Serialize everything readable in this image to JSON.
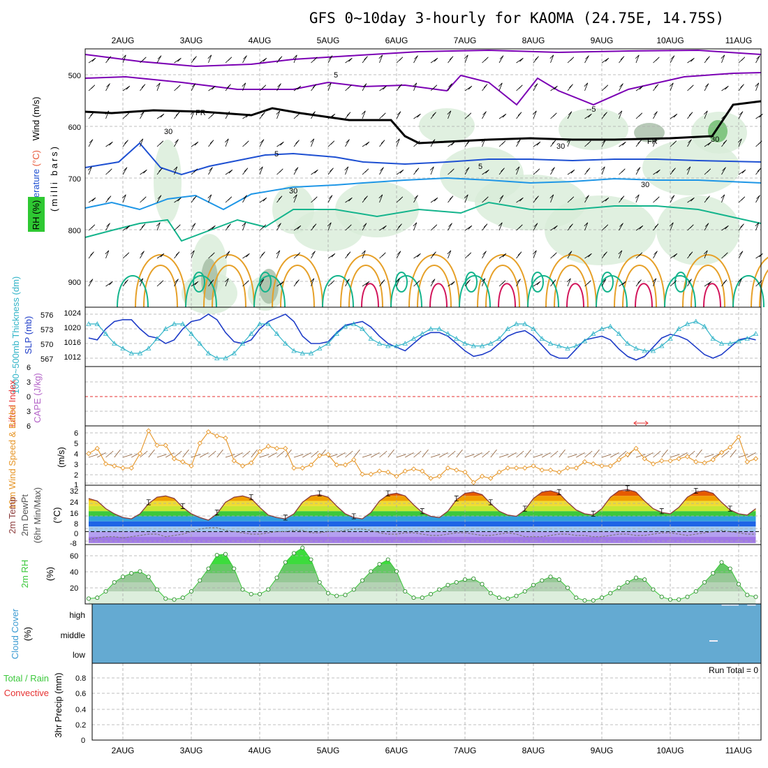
{
  "title": "GFS 0~10day 3-hourly for KAOMA (24.75E, 14.75S)",
  "dates": [
    "2AUG",
    "3AUG",
    "4AUG",
    "5AUG",
    "6AUG",
    "7AUG",
    "8AUG",
    "9AUG",
    "10AUG",
    "11AUG"
  ],
  "colors": {
    "wind500": "#7b00b4",
    "freezing": "#000000",
    "iso5": "#1e50d2",
    "iso10": "#1e96e6",
    "iso15": "#14b48c",
    "iso20": "#e6a028",
    "iso25": "#d2145a",
    "rh": "#b4dcb4",
    "slp": "#1e3cc8",
    "thickness": "#32b4c8",
    "li_zero": "#e63232",
    "wind10m": "#e69628",
    "barbs": "#8c5a32",
    "temp": "#8c3c3c",
    "dewpt": "#787878",
    "rh2m": "#3cc83c",
    "cloud_fill": "#64aad2",
    "cloud_clear": "#f4f0f8"
  },
  "panels": {
    "upper": {
      "labels": [
        "Wind (m/s)",
        "Temperature (°C)",
        "RH (%)"
      ],
      "axis_label": "(milli bars)",
      "yticks": [
        "500",
        "600",
        "700",
        "800",
        "900"
      ],
      "contour_labels": [
        "5",
        "-5",
        "FR",
        "5",
        "5",
        "FR",
        "30",
        "30",
        "30",
        "30",
        "30"
      ]
    },
    "pressure": {
      "label_left": "1000~500mb Thickness (dm)",
      "label_right": "SLP (mb)",
      "left_ticks": [
        "576",
        "573",
        "570",
        "567"
      ],
      "right_ticks": [
        "1024",
        "1020",
        "1016",
        "1012"
      ]
    },
    "stability": {
      "label_left": "Lifted Index",
      "label_right": "CAPE (J/kg)",
      "ticks": [
        "6",
        "3",
        "0",
        "3",
        "6"
      ]
    },
    "wind10": {
      "label": "10m Wind Speed & Barbs",
      "unit": "(m/s)",
      "ticks": [
        "6",
        "5",
        "4",
        "3",
        "2",
        "1"
      ]
    },
    "temp2m": {
      "label": "2m Temp 2m DewPt (6hr Min/Max)",
      "unit": "(°C)",
      "ticks": [
        "32",
        "24",
        "16",
        "8",
        "0",
        "-8"
      ]
    },
    "rh2m": {
      "label": "2m RH",
      "unit": "(%)",
      "ticks": [
        "60",
        "40",
        "20"
      ]
    },
    "cloud": {
      "label": "Cloud Cover",
      "unit": "(%)",
      "levels": [
        "high",
        "middle",
        "low"
      ]
    },
    "precip": {
      "label_total": "Total / Rain",
      "label_conv": "Convective",
      "label_axis": "3hr Precip (mm)",
      "ticks": [
        "0.8",
        "0.6",
        "0.4",
        "0.2",
        "0"
      ],
      "run_total": "Run Total = 0"
    }
  },
  "chart_data": [
    {
      "type": "line",
      "title": "1000~500mb Thickness (dm) / SLP (mb)",
      "x_start": "1AUG 12Z",
      "x_step_hours": 3,
      "ylim_left": [
        566,
        577
      ],
      "ylim_right": [
        1009,
        1025
      ],
      "series": [
        {
          "name": "SLP (mb)",
          "axis": "right",
          "values": [
            1017.5,
            1017,
            1020,
            1022,
            1022.5,
            1022.5,
            1020,
            1018,
            1017.5,
            1016,
            1017,
            1020,
            1022,
            1022.5,
            1024,
            1022.5,
            1019,
            1016.5,
            1016,
            1017,
            1020,
            1022,
            1023,
            1024,
            1022,
            1018,
            1016,
            1016,
            1016.5,
            1019,
            1021,
            1021.5,
            1022,
            1020.5,
            1018,
            1016,
            1015,
            1014,
            1016,
            1018,
            1019,
            1019,
            1018,
            1016,
            1014,
            1012.5,
            1013,
            1014,
            1016,
            1018,
            1019,
            1019.5,
            1018,
            1015.5,
            1013,
            1012,
            1012,
            1014.5,
            1017,
            1017.5,
            1018,
            1017,
            1014.5,
            1012.5,
            1011.5,
            1012.5,
            1015,
            1017.5,
            1018.5,
            1018,
            1017,
            1015,
            1013,
            1012,
            1013,
            1015,
            1017,
            1017.5,
            1017,
            1015.5,
            1014,
            1013,
            1013,
            1015,
            1016.5,
            1017,
            1016.5,
            1015.5,
            1013,
            1012,
            1012.5,
            1014.5,
            1016,
            1016.5,
            1016.5,
            1017,
            1017.5,
            1018,
            1018.5,
            1019
          ]
        },
        {
          "name": "1000~500mb Thickness (dm)",
          "axis": "left",
          "values": [
            574,
            574,
            572,
            570,
            569,
            568,
            568,
            569,
            571,
            573,
            574,
            574,
            572,
            570,
            568,
            567,
            567,
            568,
            570,
            572,
            574,
            574,
            572,
            570,
            568.5,
            568,
            568,
            569,
            570,
            572,
            573.5,
            574,
            573,
            571,
            570,
            569.5,
            569.5,
            570,
            571,
            572,
            573,
            573,
            572,
            571,
            570,
            569.5,
            569.5,
            570,
            571,
            573,
            574,
            574,
            573,
            571,
            570,
            569.5,
            569,
            569.5,
            570.5,
            572,
            573,
            573.5,
            572,
            570,
            569,
            568.5,
            568.5,
            569.5,
            571,
            573,
            574,
            574.5,
            573.5,
            571,
            570,
            570,
            570.5,
            571,
            572,
            573.5,
            574,
            574,
            572.5,
            570.5,
            569.5,
            569.5,
            570,
            571,
            572,
            573.5,
            574.5,
            575,
            574,
            572,
            571,
            571,
            571,
            572,
            573,
            573.5
          ]
        }
      ]
    },
    {
      "type": "line",
      "title": "10m Wind Speed & Barbs",
      "x_start": "1AUG 12Z",
      "x_step_hours": 3,
      "ylabel": "(m/s)",
      "ylim": [
        1,
        6.5
      ],
      "series": [
        {
          "name": "10m Wind Speed (m/s)",
          "values": [
            4,
            4.5,
            3,
            2.8,
            2.6,
            2.6,
            4,
            6.2,
            4.8,
            4.8,
            3.5,
            3.2,
            2.8,
            5,
            6.1,
            5.7,
            5.5,
            3.3,
            2.8,
            3.1,
            4.2,
            4.7,
            4.5,
            4.5,
            2.6,
            2.6,
            2.9,
            3.8,
            3.9,
            2.9,
            2.9,
            3.4,
            2,
            2,
            2.3,
            2.2,
            1.8,
            2.3,
            2.5,
            2.3,
            1.6,
            1.8,
            2.6,
            2.4,
            2.2,
            1.2,
            1.8,
            1.6,
            2.2,
            2.6,
            2.6,
            2.6,
            2.8,
            2.4,
            2.4,
            2.2,
            2.6,
            2.6,
            3.2,
            3,
            2.8,
            2.8,
            3.4,
            3.9,
            4.5,
            3.5,
            3,
            3.3,
            3.3,
            3.5,
            3.7,
            3.2,
            3.1,
            3.4,
            4.1,
            4.6,
            5.6,
            3.2,
            3.5,
            3.2,
            3.5,
            2.7,
            3.9,
            3.2,
            3.6,
            3,
            3.6,
            4,
            4.1,
            3.2,
            3.2,
            3.6,
            3,
            3.3,
            3.3,
            3.5,
            3.6,
            3.3,
            3.7,
            4
          ]
        }
      ]
    },
    {
      "type": "area",
      "title": "2m Temp / 2m DewPt",
      "x_start": "1AUG 12Z",
      "x_step_hours": 3,
      "ylabel": "(°C)",
      "ylim": [
        -9,
        33
      ],
      "series": [
        {
          "name": "2m Temp (°C)",
          "values": [
            26,
            24,
            18,
            14,
            11,
            10,
            14,
            22,
            27,
            28,
            26,
            19,
            14,
            11,
            9,
            14,
            23,
            27,
            28,
            26,
            19,
            13,
            11,
            10,
            14,
            23,
            28,
            29,
            27,
            20,
            14,
            11,
            10,
            15,
            24,
            29,
            30,
            28,
            21,
            15,
            12,
            11,
            16,
            25,
            30,
            31,
            29,
            22,
            16,
            13,
            12,
            17,
            26,
            31,
            32,
            30,
            23,
            17,
            14,
            13,
            18,
            27,
            32,
            33,
            31,
            24,
            18,
            15,
            14,
            19,
            27,
            31,
            32,
            30,
            23,
            17,
            14,
            13,
            18,
            26,
            30,
            31,
            29,
            22,
            16,
            13,
            12,
            17,
            26,
            30,
            31,
            29,
            22,
            16,
            13,
            12,
            15,
            15,
            14,
            15
          ]
        },
        {
          "name": "2m DewPt (°C)",
          "values": [
            -6,
            -5,
            -4,
            -4,
            -5,
            -4,
            -3,
            -2,
            -2,
            -4,
            -3,
            -2,
            0,
            2,
            3,
            3,
            1,
            0,
            -1,
            -2,
            -2,
            -1,
            0,
            0,
            1,
            1,
            -1,
            -1,
            0,
            0,
            1,
            2,
            2,
            1,
            -1,
            -2,
            -2,
            -1,
            -1,
            -2,
            -3,
            -3,
            -2,
            -1,
            -1,
            -2,
            -3,
            -3,
            -2,
            -1,
            -2,
            -4,
            -4,
            -4,
            -3,
            -2,
            -2,
            -3,
            -3,
            -4,
            -4,
            -3,
            -2,
            -2,
            -3,
            -3,
            -2,
            -1,
            -1,
            -2,
            -3,
            -2,
            -1,
            0,
            1,
            0,
            -1,
            -2,
            -2,
            -1,
            0,
            1,
            0,
            -1,
            -2,
            -2,
            -1,
            0,
            1,
            1,
            0,
            -1,
            -1,
            0,
            1,
            1,
            1,
            0,
            1,
            1
          ]
        }
      ]
    },
    {
      "type": "area",
      "title": "2m RH",
      "x_start": "1AUG 12Z",
      "x_step_hours": 3,
      "ylabel": "(%)",
      "ylim": [
        5,
        70
      ],
      "series": [
        {
          "name": "2m RH (%)",
          "values": [
            12,
            13,
            20,
            30,
            36,
            40,
            42,
            36,
            22,
            12,
            11,
            13,
            20,
            32,
            45,
            60,
            61,
            45,
            22,
            17,
            17,
            22,
            35,
            52,
            62,
            68,
            55,
            30,
            18,
            15,
            16,
            22,
            32,
            42,
            50,
            55,
            42,
            20,
            13,
            13,
            17,
            22,
            27,
            30,
            33,
            34,
            28,
            18,
            13,
            12,
            15,
            20,
            27,
            32,
            36,
            33,
            24,
            13,
            10,
            10,
            13,
            18,
            24,
            30,
            35,
            33,
            22,
            14,
            11,
            11,
            14,
            20,
            30,
            40,
            52,
            45,
            28,
            16,
            14,
            16,
            22,
            30,
            42,
            55,
            60,
            52,
            30,
            18,
            15,
            15,
            20,
            27,
            38,
            50,
            58,
            50,
            30,
            22,
            25,
            40
          ]
        }
      ]
    },
    {
      "type": "area",
      "title": "Cloud Cover",
      "x_start": "1AUG 12Z",
      "x_step_hours": 3,
      "ylabel": "(%)",
      "ylim": [
        0,
        100
      ],
      "series": [
        {
          "name": "High cloud (%)",
          "values": [
            0,
            0,
            0,
            0,
            0,
            0,
            0,
            0,
            0,
            0,
            0,
            0,
            0,
            0,
            0,
            0,
            0,
            0,
            0,
            0,
            0,
            0,
            0,
            0,
            0,
            0,
            0,
            0,
            0,
            0,
            0,
            0,
            0,
            0,
            0,
            0,
            0,
            0,
            0,
            0,
            0,
            0,
            0,
            0,
            0,
            0,
            0,
            0,
            0,
            0,
            0,
            0,
            0,
            0,
            0,
            0,
            0,
            0,
            0,
            0,
            0,
            0,
            0,
            0,
            0,
            0,
            0,
            0,
            0,
            0,
            0,
            0,
            0,
            0,
            3,
            3,
            0,
            3,
            5,
            3,
            0,
            0,
            0,
            0,
            10,
            12,
            8,
            0,
            0,
            0,
            20,
            0,
            0,
            0,
            15,
            40,
            25,
            20,
            35,
            50
          ]
        }
      ]
    },
    {
      "type": "bar",
      "title": "3hr Precip (mm)",
      "ylabel": "3hr Precip (mm)",
      "ylim": [
        0,
        1
      ],
      "values": []
    }
  ]
}
